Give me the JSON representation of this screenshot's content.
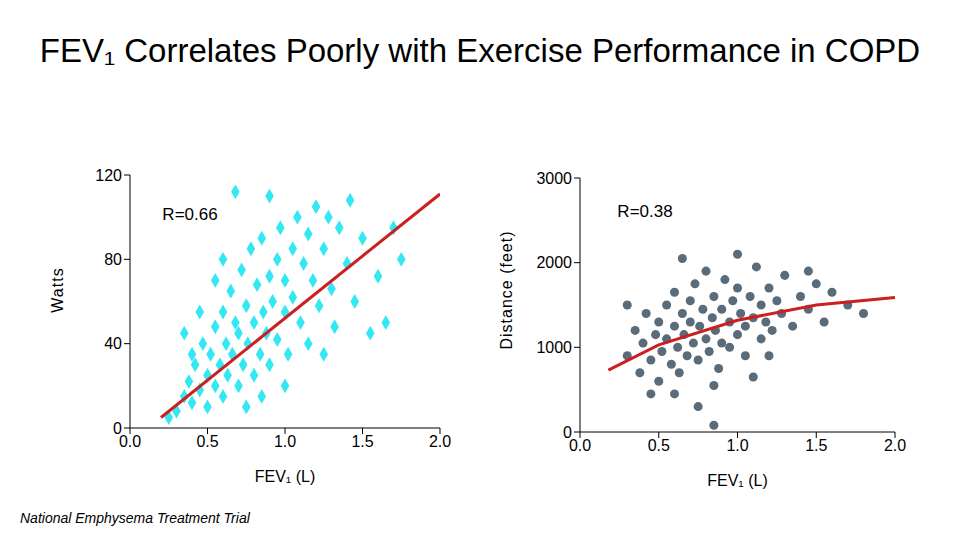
{
  "title": "FEV₁ Correlates Poorly with Exercise Performance in COPD",
  "source": "National Emphysema Treatment Trial",
  "chart_data": [
    {
      "type": "scatter",
      "x_label": "FEV₁ (L)",
      "y_label": "Watts",
      "annotation": "R=0.66",
      "xlim": [
        0,
        2
      ],
      "xticks": [
        {
          "value": 0,
          "label": "0.0"
        },
        0.5,
        {
          "value": 1,
          "label": "1.0"
        },
        1.5,
        {
          "value": 2,
          "label": "2.0"
        }
      ],
      "ylim": [
        0,
        120
      ],
      "yticks": [
        0,
        40,
        80,
        120
      ],
      "grid": false,
      "series": [
        {
          "type": "scatter",
          "color": "#33e8f2",
          "marker": "diamond",
          "x": [
            0.3,
            0.35,
            0.38,
            0.4,
            0.42,
            0.45,
            0.47,
            0.5,
            0.5,
            0.52,
            0.55,
            0.55,
            0.58,
            0.6,
            0.6,
            0.62,
            0.63,
            0.65,
            0.66,
            0.68,
            0.7,
            0.7,
            0.72,
            0.73,
            0.75,
            0.76,
            0.78,
            0.8,
            0.8,
            0.82,
            0.84,
            0.85,
            0.86,
            0.88,
            0.9,
            0.9,
            0.92,
            0.95,
            0.95,
            0.97,
            1.0,
            1.0,
            1.02,
            1.05,
            1.05,
            1.08,
            1.1,
            1.12,
            1.15,
            1.15,
            1.18,
            1.2,
            1.22,
            1.25,
            1.28,
            1.3,
            1.32,
            1.35,
            1.4,
            1.42,
            1.45,
            1.5,
            1.55,
            1.6,
            1.65,
            1.7,
            0.68,
            0.9,
            1.75,
            0.45,
            0.55,
            0.35,
            0.6,
            0.25,
            0.75,
            1.0,
            0.4,
            0.85,
            1.25
          ],
          "values": [
            8,
            15,
            22,
            12,
            30,
            18,
            40,
            25,
            10,
            35,
            48,
            20,
            30,
            55,
            15,
            40,
            25,
            65,
            35,
            50,
            20,
            45,
            75,
            30,
            58,
            40,
            85,
            25,
            50,
            68,
            35,
            90,
            55,
            45,
            72,
            30,
            60,
            80,
            42,
            95,
            55,
            70,
            35,
            85,
            62,
            100,
            50,
            78,
            92,
            40,
            70,
            105,
            58,
            85,
            100,
            66,
            48,
            95,
            78,
            108,
            60,
            90,
            45,
            72,
            50,
            95,
            112,
            110,
            80,
            55,
            70,
            45,
            80,
            5,
            10,
            20,
            35,
            15,
            35
          ]
        },
        {
          "type": "line",
          "color": "#cc1f1f",
          "x": [
            0.2,
            2.0
          ],
          "values": [
            5,
            111
          ]
        }
      ]
    },
    {
      "type": "scatter",
      "x_label": "FEV₁ (L)",
      "y_label": "Distance (feet)",
      "annotation": "R=0.38",
      "xlim": [
        0,
        2
      ],
      "xticks": [
        {
          "value": 0,
          "label": "0.0"
        },
        0.5,
        {
          "value": 1,
          "label": "1.0"
        },
        1.5,
        {
          "value": 2,
          "label": "2.0"
        }
      ],
      "ylim": [
        0,
        3000
      ],
      "yticks": [
        0,
        1000,
        2000,
        3000
      ],
      "grid": false,
      "series": [
        {
          "type": "scatter",
          "color": "#5a6b7a",
          "marker": "circle",
          "x": [
            0.3,
            0.35,
            0.38,
            0.4,
            0.42,
            0.45,
            0.48,
            0.5,
            0.5,
            0.52,
            0.55,
            0.55,
            0.58,
            0.6,
            0.6,
            0.62,
            0.63,
            0.65,
            0.66,
            0.68,
            0.7,
            0.7,
            0.72,
            0.73,
            0.75,
            0.76,
            0.78,
            0.8,
            0.8,
            0.82,
            0.84,
            0.85,
            0.86,
            0.88,
            0.9,
            0.9,
            0.92,
            0.95,
            0.95,
            0.97,
            1.0,
            1.0,
            1.02,
            1.05,
            1.05,
            1.08,
            1.1,
            1.12,
            1.15,
            1.15,
            1.18,
            1.2,
            1.22,
            1.25,
            1.28,
            1.3,
            1.35,
            1.4,
            1.45,
            1.5,
            1.55,
            1.6,
            1.7,
            1.8,
            0.65,
            1.0,
            0.85,
            1.1,
            0.45,
            0.75,
            0.85,
            1.2,
            1.45,
            0.3,
            0.6
          ],
          "values": [
            900,
            1200,
            700,
            1050,
            1400,
            850,
            1150,
            600,
            1300,
            950,
            1500,
            1100,
            800,
            1250,
            1650,
            1000,
            700,
            1400,
            1150,
            900,
            1550,
            1300,
            1050,
            1750,
            850,
            1250,
            1450,
            1100,
            1900,
            950,
            1350,
            1600,
            1200,
            750,
            1450,
            1050,
            1800,
            1300,
            1000,
            1550,
            1150,
            1700,
            1400,
            900,
            1250,
            1600,
            1350,
            1950,
            1100,
            1500,
            1300,
            1700,
            1200,
            1550,
            1400,
            1850,
            1250,
            1600,
            1450,
            1750,
            1300,
            1650,
            1500,
            1400,
            2050,
            2100,
            550,
            650,
            450,
            300,
            80,
            900,
            1900,
            1500,
            450
          ]
        },
        {
          "type": "line",
          "color": "#cc1f1f",
          "x": [
            0.18,
            0.5,
            1.0,
            1.5,
            2.0
          ],
          "values": [
            730,
            1030,
            1320,
            1500,
            1590
          ]
        }
      ]
    }
  ]
}
